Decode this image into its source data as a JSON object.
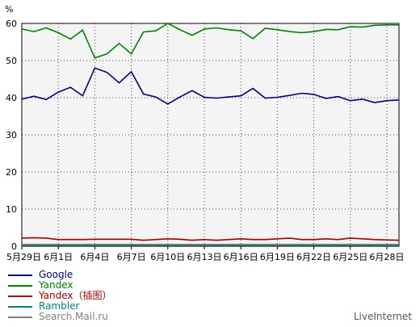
{
  "chart_data": {
    "type": "line",
    "ylabel": "%",
    "ylim": [
      0,
      60
    ],
    "y_ticks": [
      0,
      10,
      20,
      30,
      40,
      50,
      60
    ],
    "x": [
      "5月29日",
      "5月30日",
      "5月31日",
      "6月1日",
      "6月2日",
      "6月3日",
      "6月4日",
      "6月5日",
      "6月6日",
      "6月7日",
      "6月8日",
      "6月9日",
      "6月10日",
      "6月11日",
      "6月12日",
      "6月13日",
      "6月14日",
      "6月15日",
      "6月16日",
      "6月17日",
      "6月18日",
      "6月19日",
      "6月20日",
      "6月21日",
      "6月22日",
      "6月23日",
      "6月24日",
      "6月25日",
      "6月26日",
      "6月27日",
      "6月28日",
      "6月29日"
    ],
    "x_tick_labels": [
      "5月29日",
      "6月1日",
      "6月4日",
      "6月7日",
      "6月10日",
      "6月13日",
      "6月16日",
      "6月19日",
      "6月22日",
      "6月25日",
      "6月28日"
    ],
    "grid": true,
    "legend_position": "bottom-left",
    "series": [
      {
        "name": "Google",
        "color": "#000080",
        "values": [
          39.6,
          40.4,
          39.5,
          41.5,
          42.8,
          40.5,
          48,
          46.8,
          44,
          47,
          41,
          40.2,
          38.3,
          40.2,
          41.9,
          40.1,
          39.9,
          40.2,
          40.5,
          42.5,
          39.9,
          40.1,
          40.6,
          41.2,
          40.9,
          39.8,
          40.3,
          39.2,
          39.6,
          38.7,
          39.2,
          39.4
        ]
      },
      {
        "name": "Yandex",
        "color": "#008000",
        "values": [
          58.5,
          57.8,
          58.8,
          57.5,
          55.8,
          58.2,
          50.7,
          51.8,
          54.6,
          51.8,
          57.7,
          58,
          60,
          58.3,
          56.8,
          58.5,
          58.8,
          58.3,
          58,
          55.9,
          58.7,
          58.3,
          57.8,
          57.5,
          57.8,
          58.4,
          58.3,
          59.1,
          59,
          59.5,
          59.6,
          59.6
        ]
      },
      {
        "name": "Yandex（插图）",
        "color": "#a00000",
        "values": [
          2.2,
          2.3,
          2.2,
          1.8,
          1.8,
          1.8,
          1.9,
          1.9,
          1.9,
          1.9,
          1.6,
          1.8,
          2,
          1.9,
          1.6,
          1.8,
          1.6,
          1.8,
          2,
          1.8,
          1.8,
          2,
          2.2,
          1.8,
          1.8,
          2,
          1.8,
          2.2,
          2,
          1.8,
          1.7,
          1.6
        ]
      },
      {
        "name": "Rambler",
        "color": "#008080",
        "values": [
          0.3,
          0.3,
          0.3,
          0.3,
          0.3,
          0.3,
          0.3,
          0.3,
          0.3,
          0.3,
          0.3,
          0.3,
          0.3,
          0.3,
          0.3,
          0.3,
          0.3,
          0.3,
          0.3,
          0.3,
          0.3,
          0.3,
          0.3,
          0.3,
          0.3,
          0.3,
          0.3,
          0.3,
          0.3,
          0.3,
          0.3,
          0.3
        ]
      },
      {
        "name": "Search.Mail.ru",
        "color": "#808080",
        "values": [
          0.5,
          0.5,
          0.5,
          0.5,
          0.5,
          0.5,
          0.5,
          0.5,
          0.5,
          0.5,
          0.5,
          0.5,
          0.5,
          0.5,
          0.5,
          0.5,
          0.5,
          0.5,
          0.5,
          0.5,
          0.5,
          0.5,
          0.5,
          0.5,
          0.5,
          0.5,
          0.5,
          0.5,
          0.5,
          0.5,
          0.5,
          0.5
        ]
      }
    ]
  },
  "watermark": "LiveInternet"
}
